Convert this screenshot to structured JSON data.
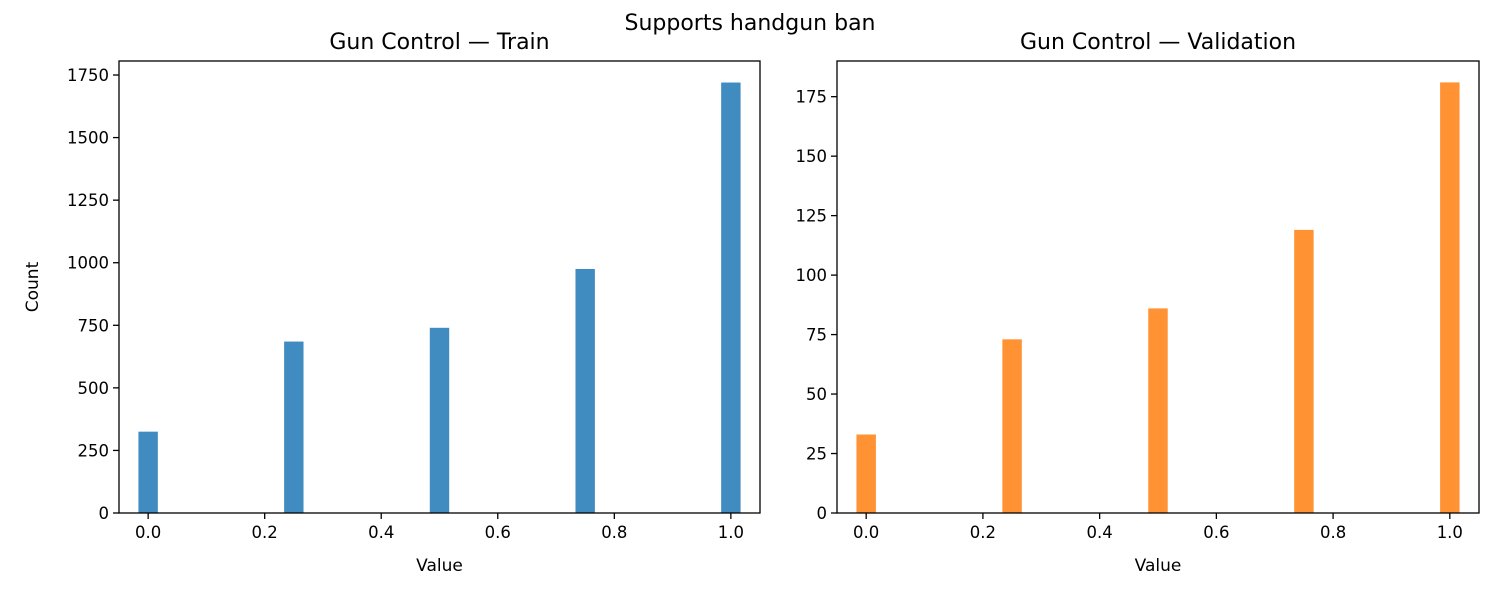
{
  "figure": {
    "suptitle": "Supports handgun ban"
  },
  "chart_data": [
    {
      "type": "bar",
      "title": "Gun Control — Train",
      "xlabel": "Value",
      "ylabel": "Count",
      "x": [
        0.0,
        0.25,
        0.5,
        0.75,
        1.0
      ],
      "values": [
        325,
        685,
        740,
        975,
        1720
      ],
      "bar_width": 0.0333,
      "xlim": [
        -0.05,
        1.05
      ],
      "ylim": [
        0,
        1806
      ],
      "xticks": [
        0.0,
        0.2,
        0.4,
        0.6,
        0.8,
        1.0
      ],
      "xtick_labels": [
        "0.0",
        "0.2",
        "0.4",
        "0.6",
        "0.8",
        "1.0"
      ],
      "yticks": [
        0,
        250,
        500,
        750,
        1000,
        1250,
        1500,
        1750
      ],
      "ytick_labels": [
        "0",
        "250",
        "500",
        "750",
        "1000",
        "1250",
        "1500",
        "1750"
      ],
      "color": "#1f77b4",
      "opacity": 0.85,
      "grid": false
    },
    {
      "type": "bar",
      "title": "Gun Control — Validation",
      "xlabel": "Value",
      "ylabel": "",
      "x": [
        0.0,
        0.25,
        0.5,
        0.75,
        1.0
      ],
      "values": [
        33,
        73,
        86,
        119,
        181
      ],
      "bar_width": 0.0333,
      "xlim": [
        -0.05,
        1.05
      ],
      "ylim": [
        0,
        190
      ],
      "xticks": [
        0.0,
        0.2,
        0.4,
        0.6,
        0.8,
        1.0
      ],
      "xtick_labels": [
        "0.0",
        "0.2",
        "0.4",
        "0.6",
        "0.8",
        "1.0"
      ],
      "yticks": [
        0,
        25,
        50,
        75,
        100,
        125,
        150,
        175
      ],
      "ytick_labels": [
        "0",
        "25",
        "50",
        "75",
        "100",
        "125",
        "150",
        "175"
      ],
      "color": "#ff7f0e",
      "opacity": 0.85,
      "grid": false
    }
  ]
}
